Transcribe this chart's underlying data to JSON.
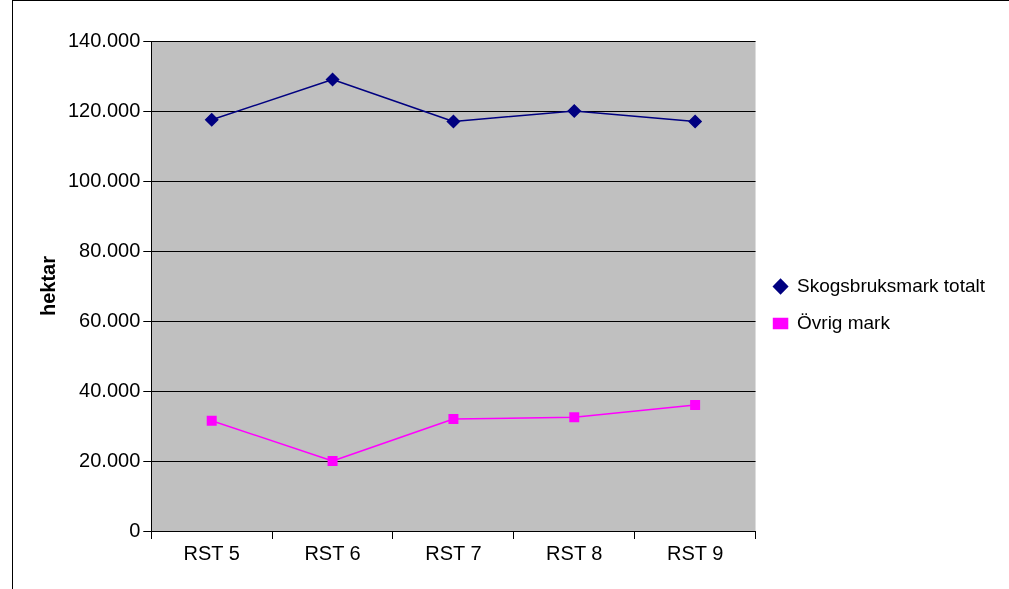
{
  "chart_data": {
    "type": "line",
    "ylabel": "hektar",
    "categories": [
      "RST 5",
      "RST 6",
      "RST 7",
      "RST 8",
      "RST 9"
    ],
    "series": [
      {
        "name": "Skogsbruksmark totalt",
        "color": "#000080",
        "marker": "diamond",
        "values": [
          117500,
          129000,
          117000,
          120000,
          117000
        ]
      },
      {
        "name": "Övrig mark",
        "color": "#ff00ff",
        "marker": "square",
        "values": [
          31500,
          20000,
          32000,
          32500,
          36000
        ]
      }
    ],
    "ylim": [
      0,
      140000
    ],
    "yticks": [
      0,
      {
        "value": 20000,
        "label": "20.000"
      },
      {
        "value": 40000,
        "label": "40.000"
      },
      {
        "value": 60000,
        "label": "60.000"
      },
      {
        "value": 80000,
        "label": "80.000"
      },
      {
        "value": 100000,
        "label": "100.000"
      },
      {
        "value": 120000,
        "label": "120.000"
      },
      {
        "value": 140000,
        "label": "140.000"
      }
    ],
    "grid": "y",
    "legend": "right"
  }
}
